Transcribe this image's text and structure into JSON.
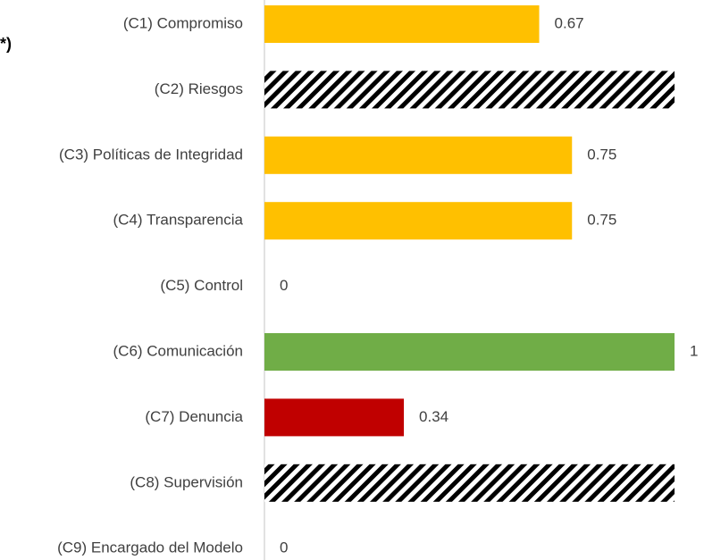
{
  "chart_data": {
    "type": "hbar",
    "annotation": "*)",
    "categories": [
      "(C1) Compromiso",
      "(C2) Riesgos",
      "(C3) Políticas de Integridad",
      "(C4) Transparencia",
      "(C5) Control",
      "(C6) Comunicación",
      "(C7) Denuncia",
      "(C8) Supervisión",
      "(C9) Encargado del Modelo"
    ],
    "values": [
      0.67,
      1,
      0.75,
      0.75,
      0,
      1,
      0.34,
      1,
      0
    ],
    "colors": [
      "#FFC000",
      "#000000",
      "#FFC000",
      "#FFC000",
      "#FFC000",
      "#70AD47",
      "#C00000",
      "#000000",
      "#FFC000"
    ],
    "hatched": [
      false,
      true,
      false,
      false,
      false,
      false,
      false,
      true,
      false
    ],
    "xlim": [
      0,
      1
    ]
  }
}
